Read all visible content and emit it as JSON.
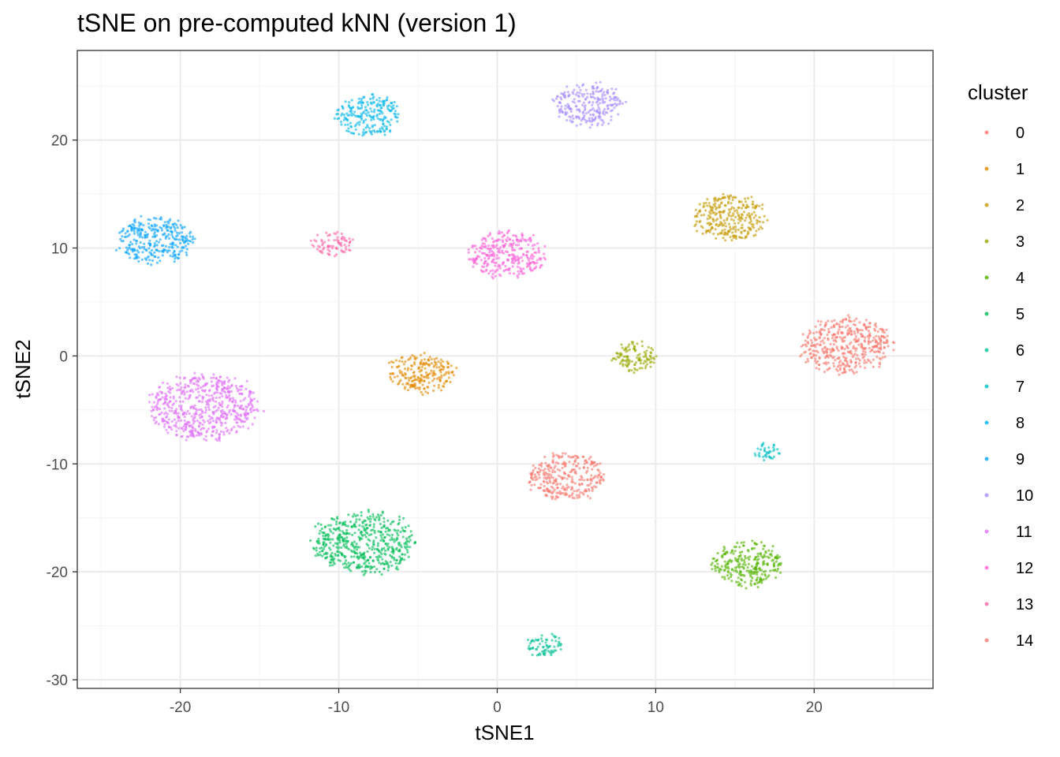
{
  "chart_data": {
    "type": "scatter",
    "title": "tSNE on pre-computed kNN (version 1)",
    "xlabel": "tSNE1",
    "ylabel": "tSNE2",
    "xlim": [
      -26.5,
      27.5
    ],
    "ylim": [
      -30.8,
      28.3
    ],
    "xticks": [
      -20,
      -10,
      0,
      10,
      20
    ],
    "yticks": [
      -30,
      -20,
      -10,
      0,
      10,
      20
    ],
    "grid": true,
    "legend": {
      "title": "cluster",
      "position": "right"
    },
    "series": [
      {
        "name": "0",
        "color": "#F8766D",
        "center": [
          4.4,
          -11.2
        ],
        "spread": [
          2.5,
          2.2
        ]
      },
      {
        "name": "1",
        "color": "#E38900",
        "center": [
          -4.8,
          -1.6
        ],
        "spread": [
          2.1,
          1.9
        ]
      },
      {
        "name": "2",
        "color": "#C49A00",
        "center": [
          14.7,
          12.8
        ],
        "spread": [
          2.3,
          2.2
        ]
      },
      {
        "name": "3",
        "color": "#99A800",
        "center": [
          8.7,
          -0.1
        ],
        "spread": [
          1.5,
          1.4
        ]
      },
      {
        "name": "4",
        "color": "#53B400",
        "center": [
          15.8,
          -19.3
        ],
        "spread": [
          2.3,
          2.1
        ]
      },
      {
        "name": "5",
        "color": "#00BC56",
        "center": [
          -8.4,
          -17.3
        ],
        "spread": [
          3.3,
          2.9
        ]
      },
      {
        "name": "6",
        "color": "#00C094",
        "center": [
          3.0,
          -26.8
        ],
        "spread": [
          1.2,
          1.1
        ]
      },
      {
        "name": "7",
        "color": "#00BFC4",
        "center": [
          17.0,
          -8.9
        ],
        "spread": [
          0.9,
          0.8
        ]
      },
      {
        "name": "8",
        "color": "#00B6EB",
        "center": [
          -8.1,
          22.3
        ],
        "spread": [
          2.1,
          1.9
        ]
      },
      {
        "name": "9",
        "color": "#06A4FF",
        "center": [
          -21.6,
          10.7
        ],
        "spread": [
          2.5,
          2.2
        ]
      },
      {
        "name": "10",
        "color": "#A58AFF",
        "center": [
          5.8,
          23.3
        ],
        "spread": [
          2.2,
          2.0
        ]
      },
      {
        "name": "11",
        "color": "#DF70F8",
        "center": [
          -18.5,
          -4.7
        ],
        "spread": [
          3.5,
          3.1
        ]
      },
      {
        "name": "12",
        "color": "#FB61D7",
        "center": [
          0.6,
          9.4
        ],
        "spread": [
          2.5,
          2.2
        ]
      },
      {
        "name": "13",
        "color": "#FF66A8",
        "center": [
          -10.4,
          10.4
        ],
        "spread": [
          1.3,
          1.1
        ]
      },
      {
        "name": "14",
        "color": "#F8766D",
        "center": [
          22.0,
          1.0
        ],
        "spread": [
          3.0,
          2.6
        ]
      }
    ]
  }
}
